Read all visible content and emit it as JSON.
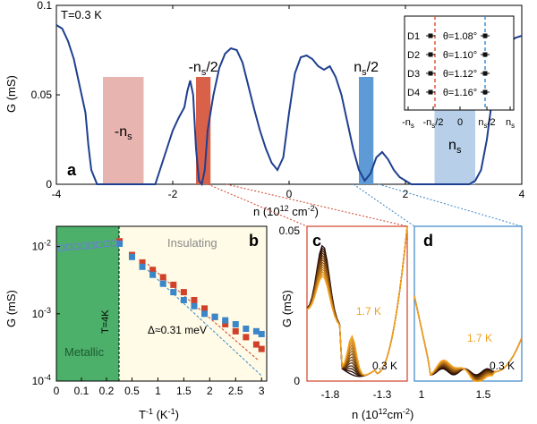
{
  "figure": {
    "panels": [
      {
        "letter": "a"
      },
      {
        "letter": "b"
      },
      {
        "letter": "c"
      },
      {
        "letter": "d"
      }
    ]
  },
  "chart_data": [
    {
      "panel": "a",
      "type": "line",
      "xlabel": "n (10",
      "xlabel_sup": "12",
      "xlabel_unit": "cm",
      "xlabel_sup2": "-2",
      "xlabel_close": ")",
      "ylabel": "G (mS)",
      "xlim": [
        -4,
        4
      ],
      "ylim": [
        0,
        0.1
      ],
      "xticks": [
        -4,
        -2,
        0,
        2,
        4
      ],
      "yticks": [
        0,
        0.05,
        0.1
      ],
      "ytick_labels": [
        "0",
        "0.05",
        "0.1"
      ],
      "annotation_T": "T=0.3 K",
      "line_color": "#1f3f8f",
      "series": [
        {
          "x": [
            -4.0,
            -3.9,
            -3.8,
            -3.7,
            -3.6,
            -3.5,
            -3.45,
            -3.4,
            -3.3,
            -3.2,
            -3.1,
            -3.0,
            -2.9,
            -2.8,
            -2.7,
            -2.6,
            -2.5,
            -2.4,
            -2.3,
            -2.2,
            -2.1,
            -2.0,
            -1.9,
            -1.8,
            -1.75,
            -1.7,
            -1.65,
            -1.6,
            -1.55,
            -1.5,
            -1.45,
            -1.4,
            -1.3,
            -1.2,
            -1.1,
            -1.0,
            -0.9,
            -0.8,
            -0.7,
            -0.6,
            -0.5,
            -0.4,
            -0.3,
            -0.2,
            -0.1,
            0.0,
            0.1,
            0.2,
            0.3,
            0.4,
            0.5,
            0.6,
            0.7,
            0.8,
            0.9,
            1.0,
            1.1,
            1.2,
            1.3,
            1.4,
            1.5,
            1.6,
            1.7,
            1.8,
            1.9,
            2.0,
            2.1,
            2.2,
            2.3,
            2.4,
            2.5,
            2.6,
            2.7,
            2.8,
            2.9,
            3.0,
            3.1,
            3.2,
            3.3,
            3.4,
            3.5,
            3.6,
            3.7,
            3.8,
            3.9,
            4.0
          ],
          "y": [
            0.089,
            0.087,
            0.08,
            0.07,
            0.055,
            0.04,
            0.022,
            0.008,
            0.0,
            0.0,
            0.0,
            0.0,
            0.0,
            0.0,
            0.0,
            0.0,
            0.0,
            0.0,
            0.0,
            0.01,
            0.02,
            0.03,
            0.037,
            0.043,
            0.052,
            0.058,
            0.05,
            0.02,
            0.002,
            0.0,
            0.008,
            0.03,
            0.05,
            0.065,
            0.073,
            0.076,
            0.075,
            0.068,
            0.055,
            0.042,
            0.03,
            0.02,
            0.012,
            0.008,
            0.015,
            0.04,
            0.062,
            0.071,
            0.072,
            0.07,
            0.066,
            0.064,
            0.066,
            0.06,
            0.05,
            0.035,
            0.02,
            0.008,
            0.002,
            0.006,
            0.015,
            0.018,
            0.014,
            0.008,
            0.004,
            0.002,
            0.0,
            0.0,
            0.0,
            0.0,
            0.0,
            0.0,
            0.0,
            0.0,
            0.0,
            0.0,
            0.0,
            0.002,
            0.008,
            0.025,
            0.05,
            0.065,
            0.075,
            0.08,
            0.082,
            0.083
          ]
        }
      ],
      "bands": [
        {
          "label": "-n",
          "sub": "s",
          "x0": -3.2,
          "x1": -2.5,
          "y0": 0.0,
          "y1": 0.06,
          "color": "#e8b4b0",
          "label_pos": "inside"
        },
        {
          "label": "-n",
          "sub": "s",
          "suffix": "/2",
          "x0": -1.6,
          "x1": -1.35,
          "y0": 0.0,
          "y1": 0.06,
          "color": "#d9614a",
          "label_pos": "above"
        },
        {
          "label": "n",
          "sub": "s",
          "suffix": "/2",
          "x0": 1.2,
          "x1": 1.45,
          "y0": 0.0,
          "y1": 0.06,
          "color": "#5d9ad6",
          "label_pos": "above"
        },
        {
          "label": "n",
          "sub": "s",
          "x0": 2.5,
          "x1": 3.2,
          "y0": 0.0,
          "y1": 0.045,
          "color": "#b7cfe8",
          "label_pos": "inside"
        }
      ],
      "inset": {
        "devices": [
          {
            "name": "D1",
            "theta": "θ=1.08°"
          },
          {
            "name": "D2",
            "theta": "θ=1.10°"
          },
          {
            "name": "D3",
            "theta": "θ=1.12°"
          },
          {
            "name": "D4",
            "theta": "θ=1.16°"
          }
        ],
        "xticks": [
          "-n",
          "-n",
          "0",
          "n",
          "n"
        ],
        "xticks_sub": [
          "s",
          "s/2",
          "",
          "s/2",
          "s"
        ],
        "left_dash_color": "#e05a3a",
        "right_dash_color": "#3a8fd6"
      }
    },
    {
      "panel": "b",
      "type": "scatter",
      "xlabel": "T",
      "xlabel_sup": "-1",
      "xlabel_unit": "(K",
      "xlabel_sup2": "-1",
      "xlabel_close": ")",
      "ylabel": "G (mS)",
      "yscale": "log",
      "ylim": [
        0.0001,
        0.02
      ],
      "xticks": [
        0,
        0.1,
        0.2,
        0.5,
        1.0,
        1.5,
        2.0,
        2.5,
        3.0
      ],
      "xtick_labels": [
        "0",
        "0.1",
        "0.2",
        "0.5",
        "1",
        "1.5",
        "2",
        "2.5",
        "3"
      ],
      "yticks": [
        "10",
        "10",
        "10"
      ],
      "yticks_sup": [
        "-2",
        "-3",
        "-4"
      ],
      "region_left": "Metallic",
      "region_right": "Insulating",
      "T_marker": "T=4K",
      "gap_label": "Δ≈0.31 meV",
      "series": [
        {
          "color": "#d0412a",
          "x": [
            0.26,
            0.5,
            0.7,
            0.9,
            1.1,
            1.3,
            1.5,
            1.7,
            1.9,
            2.1,
            2.3,
            2.5,
            2.7,
            2.9,
            3.0
          ],
          "y": [
            0.012,
            0.0075,
            0.0058,
            0.0045,
            0.0035,
            0.0027,
            0.0021,
            0.0016,
            0.0012,
            0.0009,
            0.0007,
            0.00055,
            0.00045,
            0.00035,
            0.0003
          ]
        },
        {
          "color": "#3a86c8",
          "x": [
            0.26,
            0.5,
            0.7,
            0.9,
            1.1,
            1.3,
            1.5,
            1.7,
            1.9,
            2.1,
            2.3,
            2.5,
            2.7,
            2.9,
            3.0
          ],
          "y": [
            0.011,
            0.007,
            0.005,
            0.0038,
            0.0028,
            0.0021,
            0.0016,
            0.0013,
            0.001,
            0.0009,
            0.0008,
            0.0007,
            0.0006,
            0.00055,
            0.0005
          ]
        },
        {
          "color": "#6a7fd6",
          "x": [
            0.02,
            0.05,
            0.08,
            0.11,
            0.14,
            0.17,
            0.2,
            0.23
          ],
          "y": [
            0.0095,
            0.0098,
            0.01,
            0.0102,
            0.0104,
            0.0107,
            0.011,
            0.0112
          ]
        }
      ]
    },
    {
      "panel": "c",
      "type": "line",
      "xlabel": "n (10",
      "xlabel_sup": "12",
      "xlabel_unit": "cm",
      "xlabel_sup2": "-2",
      "xlabel_close": ")",
      "ylabel": "G (mS)",
      "xticks": [
        "-1.8",
        "-1.3"
      ],
      "yticks": [
        "0",
        "0.05"
      ],
      "label_hot": "1.7 K",
      "label_cold": "0.3 K"
    },
    {
      "panel": "d",
      "type": "line",
      "xticks": [
        "1",
        "1.5"
      ],
      "label_hot": "1.7 K",
      "label_cold": "0.3 K"
    }
  ]
}
